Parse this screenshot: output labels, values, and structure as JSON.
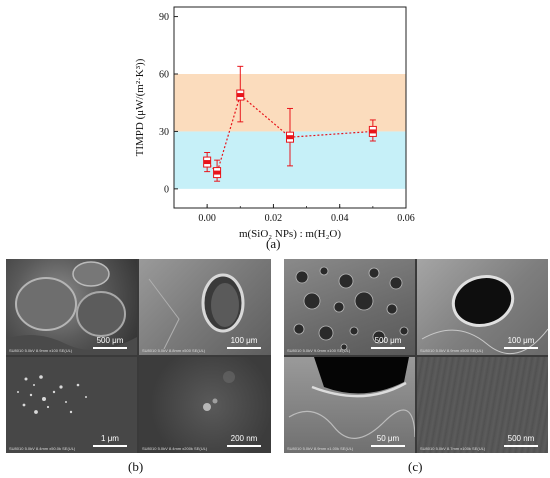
{
  "chart_data": {
    "type": "scatter",
    "xlabel": "m(SiO₂ NPs) : m(H₂O)",
    "ylabel": "TIMPD (μW/(m²·K³))",
    "xlim": [
      -0.01,
      0.06
    ],
    "ylim": [
      -10,
      95
    ],
    "xticks": [
      "0.00",
      "0.02",
      "0.04",
      "0.06"
    ],
    "xtick_values": [
      0.0,
      0.02,
      0.04,
      0.06
    ],
    "yticks": [
      "0",
      "30",
      "60",
      "90"
    ],
    "ytick_values": [
      0,
      30,
      60,
      90
    ],
    "bands": [
      {
        "from": 0,
        "to": 30,
        "color": "#c6f0f8"
      },
      {
        "from": 30,
        "to": 60,
        "color": "#fbdcbd"
      }
    ],
    "points": [
      {
        "x": 0.0,
        "y": 14,
        "low": 9,
        "high": 19
      },
      {
        "x": 0.003,
        "y": 8.5,
        "low": 4,
        "high": 15
      },
      {
        "x": 0.01,
        "y": 49,
        "low": 35,
        "high": 64
      },
      {
        "x": 0.025,
        "y": 27,
        "low": 12,
        "high": 42
      },
      {
        "x": 0.05,
        "y": 30,
        "low": 25,
        "high": 36
      }
    ],
    "colors": {
      "marker": "#e8151b",
      "box": "#ffffff",
      "line": "#e8151b"
    }
  },
  "captions": {
    "a": "(a)",
    "b": "(b)",
    "c": "(c)"
  },
  "panels": {
    "b": {
      "tiles": [
        {
          "scale": "500 μm",
          "footer": "SU8010 5.0kV 8.9mm x100 SE(UL)"
        },
        {
          "scale": "100 μm",
          "footer": "SU8010 5.0kV 8.8mm x500 SE(UL)"
        },
        {
          "scale": "1 μm",
          "footer": "SU8010 5.0kV 8.4mm x50.0k SE(UL)"
        },
        {
          "scale": "200 nm",
          "footer": "SU8010 5.0kV 8.4mm x200k SE(UL)"
        }
      ]
    },
    "c": {
      "tiles": [
        {
          "scale": "500 μm",
          "footer": "SU8010 5.0kV 9.0mm x100 SE(UL)"
        },
        {
          "scale": "100 μm",
          "footer": "SU8010 5.0kV 8.9mm x500 SE(UL)"
        },
        {
          "scale": "50 μm",
          "footer": "SU8010 5.0kV 8.9mm x1.00k SE(UL)"
        },
        {
          "scale": "500 nm",
          "footer": "SU8010 5.0kV 8.7mm x100k SE(UL)"
        }
      ]
    }
  }
}
